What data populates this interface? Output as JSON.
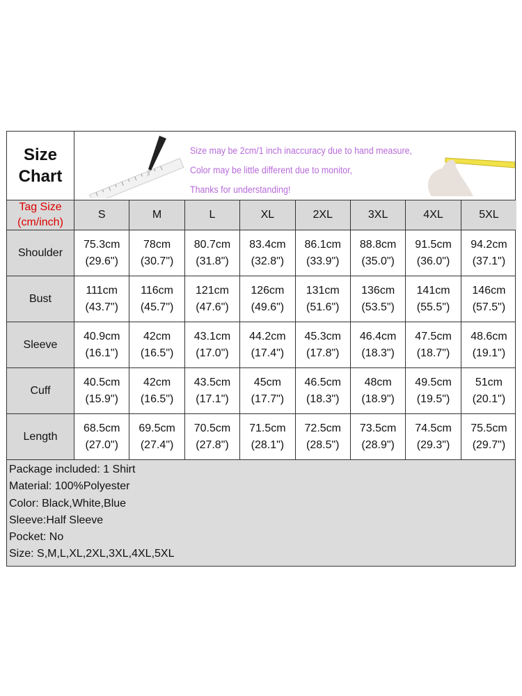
{
  "title": "Size\nChart",
  "title_lines": [
    "Size",
    "Chart"
  ],
  "notes": [
    "Size may be 2cm/1 inch inaccuracy due to hand measure,",
    "Color may be little different due to monitor,",
    "Thanks for understanding!"
  ],
  "tag_label": [
    "Tag Size",
    "(cm/inch)"
  ],
  "sizes": [
    "S",
    "M",
    "L",
    "XL",
    "2XL",
    "3XL",
    "4XL",
    "5XL"
  ],
  "rows": [
    {
      "label": "Shoulder",
      "cm": [
        "75.3cm",
        "78cm",
        "80.7cm",
        "83.4cm",
        "86.1cm",
        "88.8cm",
        "91.5cm",
        "94.2cm"
      ],
      "inch": [
        "(29.6\")",
        "(30.7\")",
        "(31.8\")",
        "(32.8\")",
        "(33.9\")",
        "(35.0\")",
        "(36.0\")",
        "(37.1\")"
      ]
    },
    {
      "label": "Bust",
      "cm": [
        "111cm",
        "116cm",
        "121cm",
        "126cm",
        "131cm",
        "136cm",
        "141cm",
        "146cm"
      ],
      "inch": [
        "(43.7\")",
        "(45.7\")",
        "(47.6\")",
        "(49.6\")",
        "(51.6\")",
        "(53.5\")",
        "(55.5\")",
        "(57.5\")"
      ]
    },
    {
      "label": "Sleeve",
      "cm": [
        "40.9cm",
        "42cm",
        "43.1cm",
        "44.2cm",
        "45.3cm",
        "46.4cm",
        "47.5cm",
        "48.6cm"
      ],
      "inch": [
        "(16.1\")",
        "(16.5\")",
        "(17.0\")",
        "(17.4\")",
        "(17.8\")",
        "(18.3\")",
        "(18.7\")",
        "(19.1\")"
      ]
    },
    {
      "label": "Cuff",
      "cm": [
        "40.5cm",
        "42cm",
        "43.5cm",
        "45cm",
        "46.5cm",
        "48cm",
        "49.5cm",
        "51cm"
      ],
      "inch": [
        "(15.9\")",
        "(16.5\")",
        "(17.1\")",
        "(17.7\")",
        "(18.3\")",
        "(18.9\")",
        "(19.5\")",
        "(20.1\")"
      ]
    },
    {
      "label": "Length",
      "cm": [
        "68.5cm",
        "69.5cm",
        "70.5cm",
        "71.5cm",
        "72.5cm",
        "73.5cm",
        "74.5cm",
        "75.5cm"
      ],
      "inch": [
        "(27.0\")",
        "(27.4\")",
        "(27.8\")",
        "(28.1\")",
        "(28.5\")",
        "(28.9\")",
        "(29.3\")",
        "(29.7\")"
      ]
    }
  ],
  "info": [
    "Package included:  1 Shirt",
    "Material: 100%Polyester",
    "Color: Black,White,Blue",
    "Sleeve:Half Sleeve",
    "Pocket: No",
    "Size: S,M,L,XL,2XL,3XL,4XL,5XL"
  ],
  "colors": {
    "note_text": "#b76bd8",
    "tag_label": "#dd0000",
    "header_fill": "#d9d9d9"
  },
  "icons": [
    "pencil-ruler-illustration",
    "hand-tape-measure-illustration"
  ]
}
